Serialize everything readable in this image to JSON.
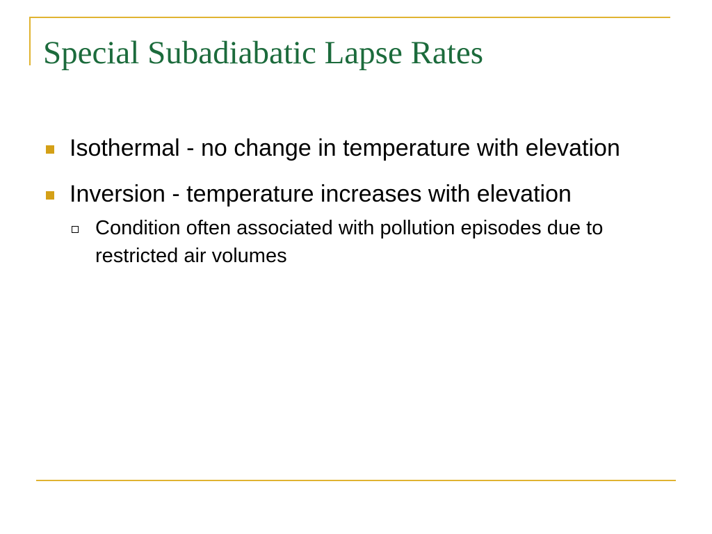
{
  "slide": {
    "title": "Special Subadiabatic Lapse Rates",
    "accent_color": "#e0b331",
    "title_color": "#1c6b3c",
    "bullets": [
      {
        "text": "Isothermal - no change in temperature with elevation"
      },
      {
        "text": "Inversion - temperature increases with elevation",
        "subbullets": [
          {
            "text": "Condition often associated with pollution episodes due to restricted air volumes"
          }
        ]
      }
    ],
    "icons": {
      "bullet": "square-bullet-icon",
      "subbullet": "hollow-square-bullet-icon"
    }
  }
}
